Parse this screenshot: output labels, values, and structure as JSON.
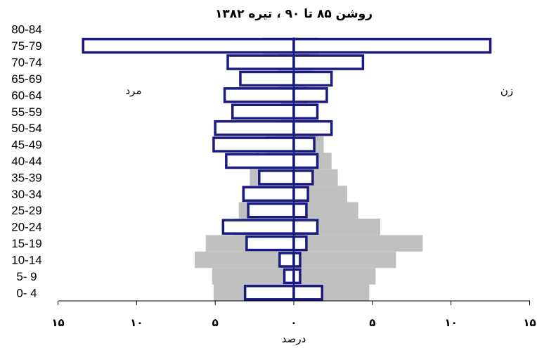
{
  "chart_data": {
    "type": "bar",
    "title": "روشن ۸۵ تا ۹۰ ، تیره ۱۳۸۲",
    "xlabel": "درصد",
    "side_labels": {
      "left": "مرد",
      "right": "زن"
    },
    "xlim": [
      -15,
      15
    ],
    "xticks": [
      -15,
      -10,
      -5,
      0,
      5,
      10,
      15
    ],
    "xtick_labels": [
      "۱۵",
      "۱۰",
      "۵",
      "۰",
      "۵",
      "۱۰",
      "۱۵"
    ],
    "categories": [
      "0- 4",
      "5- 9",
      "10-14",
      "15-19",
      "20-24",
      "25-29",
      "30-34",
      "35-39",
      "40-44",
      "45-49",
      "50-54",
      "55-59",
      "60-64",
      "65-69",
      "70-74",
      "75-79",
      "80-84"
    ],
    "series": [
      {
        "fill": "#c0c0c0",
        "male": [
          5.1,
          5.2,
          6.3,
          5.6,
          3.8,
          3.5,
          3.3,
          2.8,
          2.4,
          1.8,
          1.2,
          0.8,
          0.8,
          1.0,
          1.0,
          2.0,
          0.0
        ],
        "female": [
          4.8,
          5.2,
          6.5,
          8.2,
          5.5,
          4.1,
          3.4,
          2.8,
          2.4,
          1.9,
          1.6,
          1.5,
          0.9,
          1.3,
          1.0,
          1.6,
          0.0
        ]
      },
      {
        "stroke": "#1a1a80",
        "male": [
          3.1,
          0.6,
          0.9,
          3.0,
          4.5,
          2.9,
          3.2,
          2.2,
          4.3,
          5.1,
          5.0,
          3.9,
          4.4,
          3.4,
          4.2,
          13.4,
          0.0
        ],
        "female": [
          1.8,
          0.4,
          0.4,
          0.8,
          1.5,
          0.8,
          0.9,
          1.2,
          1.5,
          1.3,
          2.4,
          1.5,
          2.1,
          2.4,
          4.4,
          12.5,
          0.0
        ]
      }
    ]
  }
}
